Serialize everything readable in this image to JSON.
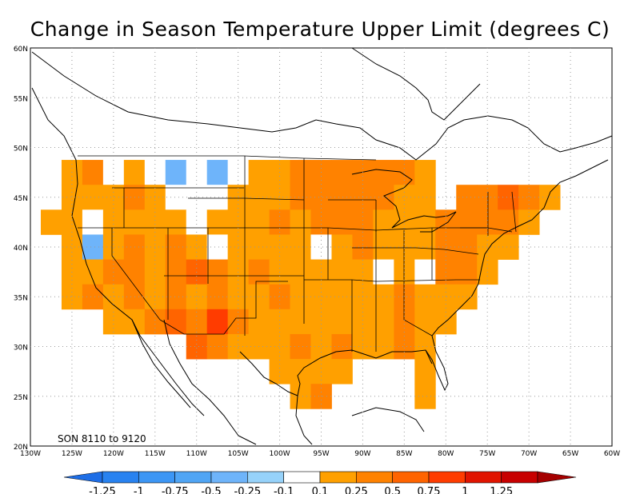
{
  "title": "Change in Season Temperature Upper Limit (degrees C)",
  "annotation": "SON  8110  to  9120",
  "map": {
    "lon_range": [
      -130,
      -60
    ],
    "lat_range": [
      20,
      60
    ],
    "lat_ticks": [
      "20N",
      "25N",
      "30N",
      "35N",
      "40N",
      "45N",
      "50N",
      "55N",
      "60N"
    ],
    "lon_ticks": [
      "130W",
      "125W",
      "120W",
      "115W",
      "110W",
      "105W",
      "100W",
      "95W",
      "90W",
      "85W",
      "80W",
      "75W",
      "70W",
      "65W",
      "60W"
    ],
    "grid": true,
    "grid_style": "dotted"
  },
  "colorbar": {
    "labels": [
      "-1.25",
      "-1",
      "-0.75",
      "-0.5",
      "-0.25",
      "-0.1",
      "0.1",
      "0.25",
      "0.5",
      "0.75",
      "1",
      "1.25"
    ],
    "colors": [
      "#1e6ee6",
      "#2882f0",
      "#3c96f5",
      "#50a5f5",
      "#6eb4fa",
      "#96d2fa",
      "#ffffff",
      "#ffa000",
      "#ff8200",
      "#ff6400",
      "#ff3c00",
      "#e11400",
      "#c80000",
      "#a50000"
    ]
  },
  "field": {
    "cell_size_deg": 2.5,
    "default_value_class": "0.1-0.25",
    "classes": {
      "w": "#ffffff",
      "b": "#6eb4fa",
      "o": "#ffa000",
      "d": "#ff8200",
      "r": "#ff6400",
      "x": "#ff3c00"
    },
    "cells": [
      [
        "-125.0",
        "47.5",
        "o"
      ],
      [
        "-122.5",
        "47.5",
        "d"
      ],
      [
        "-120.0",
        "47.5",
        "w"
      ],
      [
        "-117.5",
        "47.5",
        "o"
      ],
      [
        "-115.0",
        "47.5",
        "w"
      ],
      [
        "-112.5",
        "47.5",
        "b"
      ],
      [
        "-110.0",
        "47.5",
        "w"
      ],
      [
        "-107.5",
        "47.5",
        "b"
      ],
      [
        "-105.0",
        "47.5",
        "w"
      ],
      [
        "-102.5",
        "47.5",
        "o"
      ],
      [
        "-100.0",
        "47.5",
        "o"
      ],
      [
        "-97.5",
        "47.5",
        "d"
      ],
      [
        "-95.0",
        "47.5",
        "d"
      ],
      [
        "-92.5",
        "47.5",
        "d"
      ],
      [
        "-90.0",
        "47.5",
        "d"
      ],
      [
        "-87.5",
        "47.5",
        "d"
      ],
      [
        "-85.0",
        "47.5",
        "d"
      ],
      [
        "-82.5",
        "47.5",
        "o"
      ],
      [
        "-125.0",
        "45.0",
        "o"
      ],
      [
        "-122.5",
        "45.0",
        "o"
      ],
      [
        "-120.0",
        "45.0",
        "o"
      ],
      [
        "-117.5",
        "45.0",
        "d"
      ],
      [
        "-115.0",
        "45.0",
        "o"
      ],
      [
        "-112.5",
        "45.0",
        "w"
      ],
      [
        "-110.0",
        "45.0",
        "w"
      ],
      [
        "-107.5",
        "45.0",
        "w"
      ],
      [
        "-105.0",
        "45.0",
        "o"
      ],
      [
        "-102.5",
        "45.0",
        "o"
      ],
      [
        "-100.0",
        "45.0",
        "o"
      ],
      [
        "-97.5",
        "45.0",
        "d"
      ],
      [
        "-95.0",
        "45.0",
        "d"
      ],
      [
        "-92.5",
        "45.0",
        "d"
      ],
      [
        "-90.0",
        "45.0",
        "d"
      ],
      [
        "-87.5",
        "45.0",
        "d"
      ],
      [
        "-85.0",
        "45.0",
        "o"
      ],
      [
        "-82.5",
        "45.0",
        "o"
      ],
      [
        "-77.5",
        "45.0",
        "d"
      ],
      [
        "-75.0",
        "45.0",
        "d"
      ],
      [
        "-72.5",
        "45.0",
        "r"
      ],
      [
        "-70.0",
        "45.0",
        "d"
      ],
      [
        "-67.5",
        "45.0",
        "o"
      ],
      [
        "-127.5",
        "42.5",
        "o"
      ],
      [
        "-125.0",
        "42.5",
        "o"
      ],
      [
        "-122.5",
        "42.5",
        "w"
      ],
      [
        "-120.0",
        "42.5",
        "o"
      ],
      [
        "-117.5",
        "42.5",
        "o"
      ],
      [
        "-115.0",
        "42.5",
        "o"
      ],
      [
        "-112.5",
        "42.5",
        "o"
      ],
      [
        "-110.0",
        "42.5",
        "w"
      ],
      [
        "-107.5",
        "42.5",
        "o"
      ],
      [
        "-105.0",
        "42.5",
        "o"
      ],
      [
        "-102.5",
        "42.5",
        "o"
      ],
      [
        "-100.0",
        "42.5",
        "d"
      ],
      [
        "-97.5",
        "42.5",
        "o"
      ],
      [
        "-95.0",
        "42.5",
        "d"
      ],
      [
        "-92.5",
        "42.5",
        "d"
      ],
      [
        "-90.0",
        "42.5",
        "d"
      ],
      [
        "-87.5",
        "42.5",
        "o"
      ],
      [
        "-85.0",
        "42.5",
        "o"
      ],
      [
        "-82.5",
        "42.5",
        "o"
      ],
      [
        "-80.0",
        "42.5",
        "d"
      ],
      [
        "-77.5",
        "42.5",
        "d"
      ],
      [
        "-75.0",
        "42.5",
        "d"
      ],
      [
        "-72.5",
        "42.5",
        "d"
      ],
      [
        "-70.0",
        "42.5",
        "o"
      ],
      [
        "-125.0",
        "40.0",
        "o"
      ],
      [
        "-122.5",
        "40.0",
        "b"
      ],
      [
        "-120.0",
        "40.0",
        "o"
      ],
      [
        "-117.5",
        "40.0",
        "d"
      ],
      [
        "-115.0",
        "40.0",
        "o"
      ],
      [
        "-112.5",
        "40.0",
        "d"
      ],
      [
        "-110.0",
        "40.0",
        "o"
      ],
      [
        "-107.5",
        "40.0",
        "w"
      ],
      [
        "-105.0",
        "40.0",
        "o"
      ],
      [
        "-102.5",
        "40.0",
        "o"
      ],
      [
        "-100.0",
        "40.0",
        "o"
      ],
      [
        "-97.5",
        "40.0",
        "o"
      ],
      [
        "-95.0",
        "40.0",
        "w"
      ],
      [
        "-92.5",
        "40.0",
        "o"
      ],
      [
        "-90.0",
        "40.0",
        "d"
      ],
      [
        "-87.5",
        "40.0",
        "o"
      ],
      [
        "-85.0",
        "40.0",
        "o"
      ],
      [
        "-82.5",
        "40.0",
        "o"
      ],
      [
        "-80.0",
        "40.0",
        "d"
      ],
      [
        "-77.5",
        "40.0",
        "d"
      ],
      [
        "-75.0",
        "40.0",
        "o"
      ],
      [
        "-72.5",
        "40.0",
        "o"
      ],
      [
        "-125.0",
        "37.5",
        "o"
      ],
      [
        "-122.5",
        "37.5",
        "o"
      ],
      [
        "-120.0",
        "37.5",
        "d"
      ],
      [
        "-117.5",
        "37.5",
        "d"
      ],
      [
        "-115.0",
        "37.5",
        "o"
      ],
      [
        "-112.5",
        "37.5",
        "d"
      ],
      [
        "-110.0",
        "37.5",
        "r"
      ],
      [
        "-107.5",
        "37.5",
        "d"
      ],
      [
        "-105.0",
        "37.5",
        "o"
      ],
      [
        "-102.5",
        "37.5",
        "d"
      ],
      [
        "-100.0",
        "37.5",
        "o"
      ],
      [
        "-97.5",
        "37.5",
        "o"
      ],
      [
        "-95.0",
        "37.5",
        "o"
      ],
      [
        "-92.5",
        "37.5",
        "o"
      ],
      [
        "-90.0",
        "37.5",
        "o"
      ],
      [
        "-87.5",
        "37.5",
        "w"
      ],
      [
        "-85.0",
        "37.5",
        "o"
      ],
      [
        "-82.5",
        "37.5",
        "w"
      ],
      [
        "-80.0",
        "37.5",
        "d"
      ],
      [
        "-77.5",
        "37.5",
        "d"
      ],
      [
        "-75.0",
        "37.5",
        "o"
      ],
      [
        "-125.0",
        "35.0",
        "o"
      ],
      [
        "-122.5",
        "35.0",
        "d"
      ],
      [
        "-120.0",
        "35.0",
        "o"
      ],
      [
        "-117.5",
        "35.0",
        "d"
      ],
      [
        "-115.0",
        "35.0",
        "o"
      ],
      [
        "-112.5",
        "35.0",
        "d"
      ],
      [
        "-110.0",
        "35.0",
        "o"
      ],
      [
        "-107.5",
        "35.0",
        "d"
      ],
      [
        "-105.0",
        "35.0",
        "o"
      ],
      [
        "-102.5",
        "35.0",
        "o"
      ],
      [
        "-100.0",
        "35.0",
        "d"
      ],
      [
        "-97.5",
        "35.0",
        "o"
      ],
      [
        "-95.0",
        "35.0",
        "o"
      ],
      [
        "-92.5",
        "35.0",
        "o"
      ],
      [
        "-90.0",
        "35.0",
        "o"
      ],
      [
        "-87.5",
        "35.0",
        "o"
      ],
      [
        "-85.0",
        "35.0",
        "d"
      ],
      [
        "-82.5",
        "35.0",
        "o"
      ],
      [
        "-80.0",
        "35.0",
        "o"
      ],
      [
        "-77.5",
        "35.0",
        "o"
      ],
      [
        "-120.0",
        "32.5",
        "o"
      ],
      [
        "-117.5",
        "32.5",
        "o"
      ],
      [
        "-115.0",
        "32.5",
        "d"
      ],
      [
        "-112.5",
        "32.5",
        "r"
      ],
      [
        "-110.0",
        "32.5",
        "d"
      ],
      [
        "-107.5",
        "32.5",
        "x"
      ],
      [
        "-105.0",
        "32.5",
        "d"
      ],
      [
        "-102.5",
        "32.5",
        "o"
      ],
      [
        "-100.0",
        "32.5",
        "o"
      ],
      [
        "-97.5",
        "32.5",
        "o"
      ],
      [
        "-95.0",
        "32.5",
        "o"
      ],
      [
        "-92.5",
        "32.5",
        "o"
      ],
      [
        "-90.0",
        "32.5",
        "o"
      ],
      [
        "-87.5",
        "32.5",
        "o"
      ],
      [
        "-85.0",
        "32.5",
        "d"
      ],
      [
        "-82.5",
        "32.5",
        "o"
      ],
      [
        "-80.0",
        "32.5",
        "o"
      ],
      [
        "-110.0",
        "30.0",
        "r"
      ],
      [
        "-107.5",
        "30.0",
        "d"
      ],
      [
        "-105.0",
        "30.0",
        "o"
      ],
      [
        "-102.5",
        "30.0",
        "o"
      ],
      [
        "-100.0",
        "30.0",
        "o"
      ],
      [
        "-97.5",
        "30.0",
        "d"
      ],
      [
        "-95.0",
        "30.0",
        "o"
      ],
      [
        "-92.5",
        "30.0",
        "d"
      ],
      [
        "-90.0",
        "30.0",
        "o"
      ],
      [
        "-87.5",
        "30.0",
        "o"
      ],
      [
        "-85.0",
        "30.0",
        "d"
      ],
      [
        "-82.5",
        "30.0",
        "o"
      ],
      [
        "-100.0",
        "27.5",
        "o"
      ],
      [
        "-97.5",
        "27.5",
        "o"
      ],
      [
        "-95.0",
        "27.5",
        "o"
      ],
      [
        "-92.5",
        "27.5",
        "o"
      ],
      [
        "-82.5",
        "27.5",
        "o"
      ],
      [
        "-97.5",
        "25.0",
        "o"
      ],
      [
        "-95.0",
        "25.0",
        "d"
      ],
      [
        "-82.5",
        "25.0",
        "o"
      ]
    ]
  }
}
